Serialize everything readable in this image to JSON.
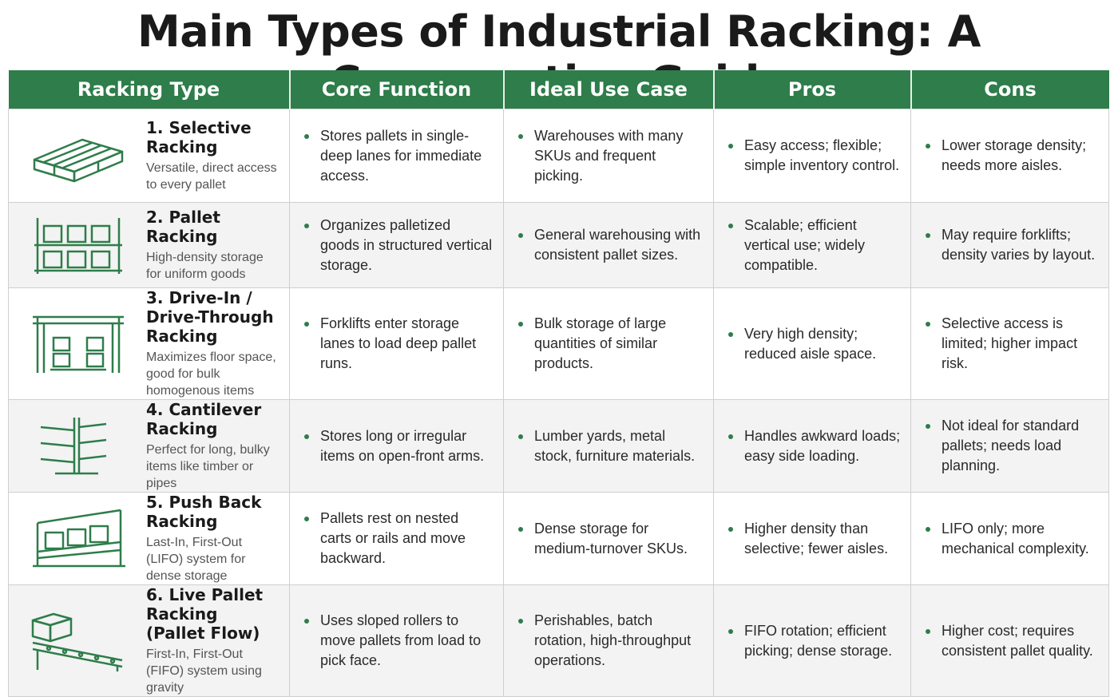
{
  "title": "Main Types of Industrial Racking: A Comparative Guide",
  "headers": {
    "type": "Racking Type",
    "function": "Core Function",
    "use_case": "Ideal Use Case",
    "pros": "Pros",
    "cons": "Cons"
  },
  "accent_color": "#2e7d4a",
  "rows": [
    {
      "icon": "selective-rack-icon",
      "name": "1. Selective Racking",
      "desc": "Versatile, direct access to every pallet",
      "function": "Stores pallets in single-deep lanes for immediate access.",
      "use_case": "Warehouses with many SKUs and frequent picking.",
      "pros": "Easy access; flexible; simple inventory control.",
      "cons": "Lower storage density; needs more aisles."
    },
    {
      "icon": "pallet-rack-icon",
      "name": "2. Pallet Racking",
      "desc": "High-density storage for uniform goods",
      "function": "Organizes palletized goods in structured vertical storage.",
      "use_case": "General warehousing with consistent pallet sizes.",
      "pros": "Scalable; efficient vertical use; widely compatible.",
      "cons": "May require forklifts; density varies by layout."
    },
    {
      "icon": "drive-in-rack-icon",
      "name": "3. Drive-In / Drive-Through Racking",
      "desc": "Maximizes floor space, good for bulk homogenous items",
      "function": "Forklifts enter storage lanes to load deep pallet runs.",
      "use_case": "Bulk storage of large quantities of similar products.",
      "pros": "Very high density; reduced aisle space.",
      "cons": "Selective access is limited; higher impact risk."
    },
    {
      "icon": "cantilever-rack-icon",
      "name": "4. Cantilever Racking",
      "desc": "Perfect for long, bulky items like timber or pipes",
      "function": "Stores long or irregular items on open-front arms.",
      "use_case": "Lumber yards, metal stock, furniture materials.",
      "pros": "Handles awkward loads; easy side loading.",
      "cons": "Not ideal for standard pallets; needs load planning."
    },
    {
      "icon": "push-back-rack-icon",
      "name": "5. Push Back Racking",
      "desc": "Last-In, First-Out (LIFO) system for dense storage",
      "function": "Pallets rest on nested carts or rails and move backward.",
      "use_case": "Dense storage for medium-turnover SKUs.",
      "pros": "Higher density than selective; fewer aisles.",
      "cons": "LIFO only; more mechanical complexity."
    },
    {
      "icon": "pallet-flow-rack-icon",
      "name": "6. Live Pallet Racking (Pallet Flow)",
      "desc": "First-In, First-Out (FIFO) system using gravity",
      "function": "Uses sloped rollers to move pallets from load to pick face.",
      "use_case": "Perishables, batch rotation, high-throughput operations.",
      "pros": "FIFO rotation; efficient picking; dense storage.",
      "cons": "Higher cost; requires consistent pallet quality."
    }
  ]
}
